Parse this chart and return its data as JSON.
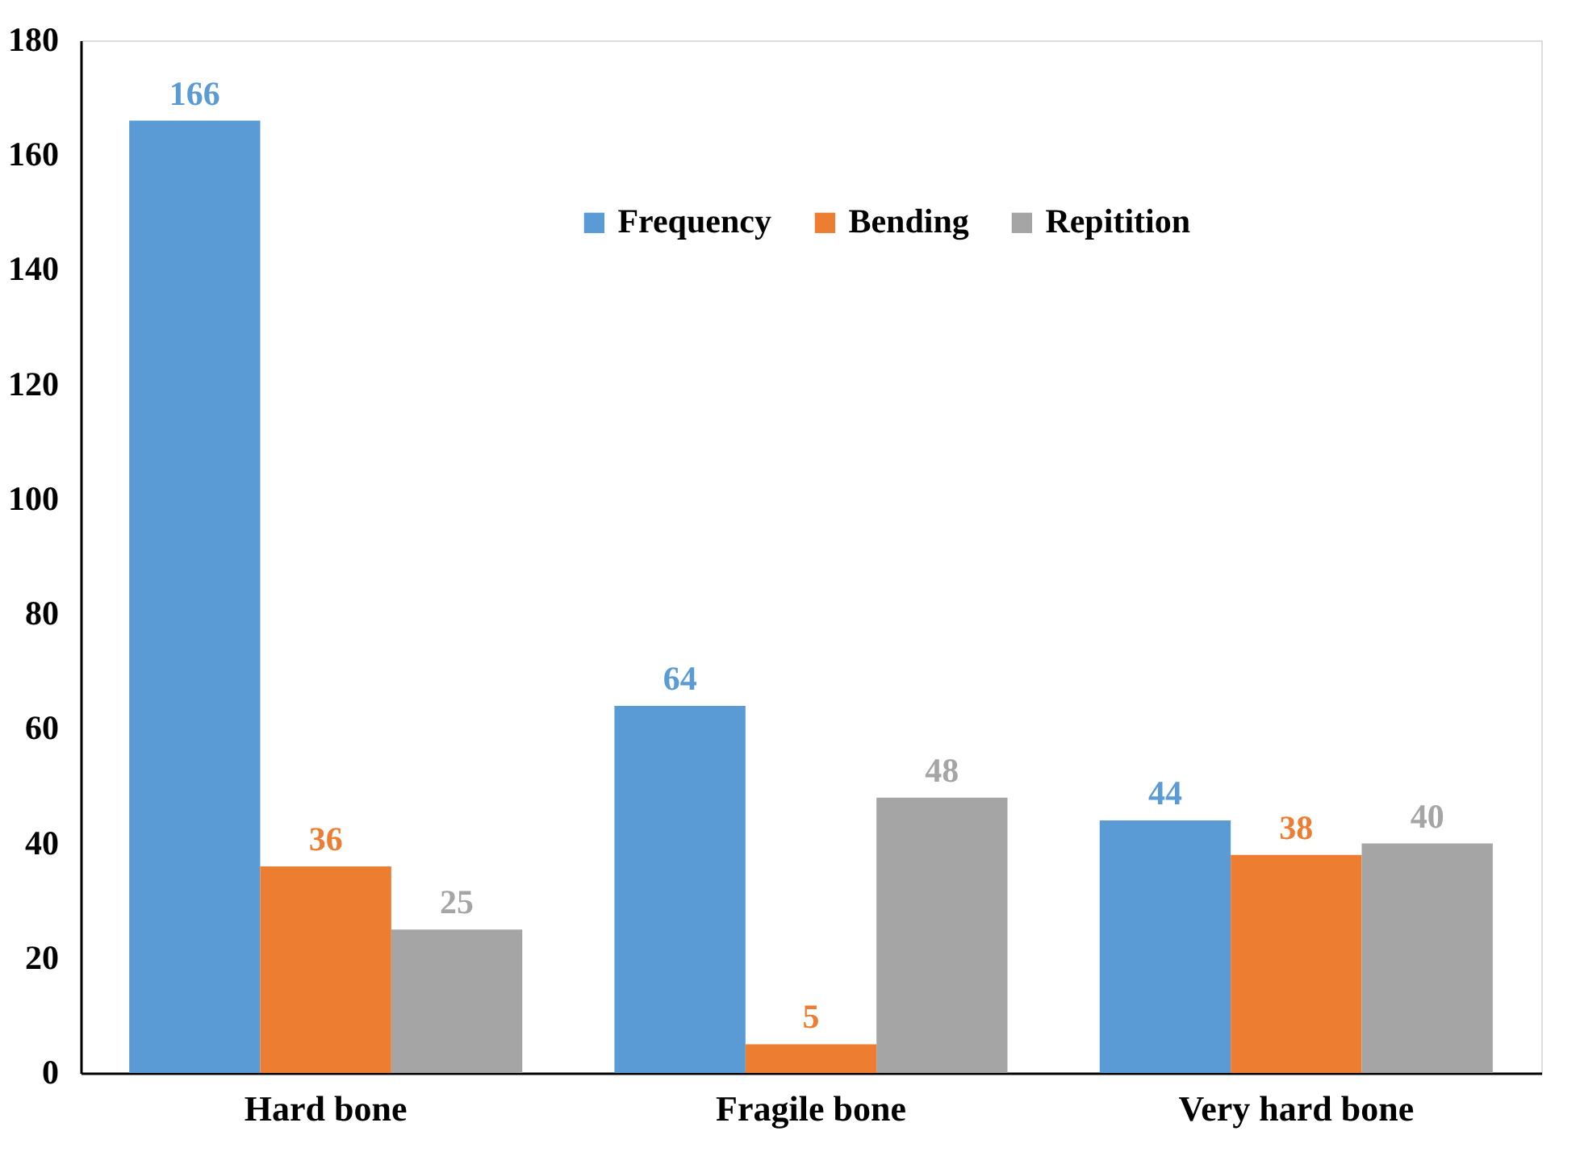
{
  "chart_data": {
    "type": "bar",
    "categories": [
      "Hard bone",
      "Fragile bone",
      "Very hard bone"
    ],
    "series": [
      {
        "name": "Frequency",
        "color": "#5b9bd5",
        "values": [
          166,
          64,
          44
        ]
      },
      {
        "name": "Bending",
        "color": "#ed7d31",
        "values": [
          36,
          5,
          38
        ]
      },
      {
        "name": "Repitition",
        "color": "#a5a5a5",
        "values": [
          25,
          48,
          40
        ]
      }
    ],
    "ylim": [
      0,
      180
    ],
    "yticks": [
      0,
      20,
      40,
      60,
      80,
      100,
      120,
      140,
      160,
      180
    ],
    "grid": false,
    "legend": "top",
    "data_labels": true
  }
}
